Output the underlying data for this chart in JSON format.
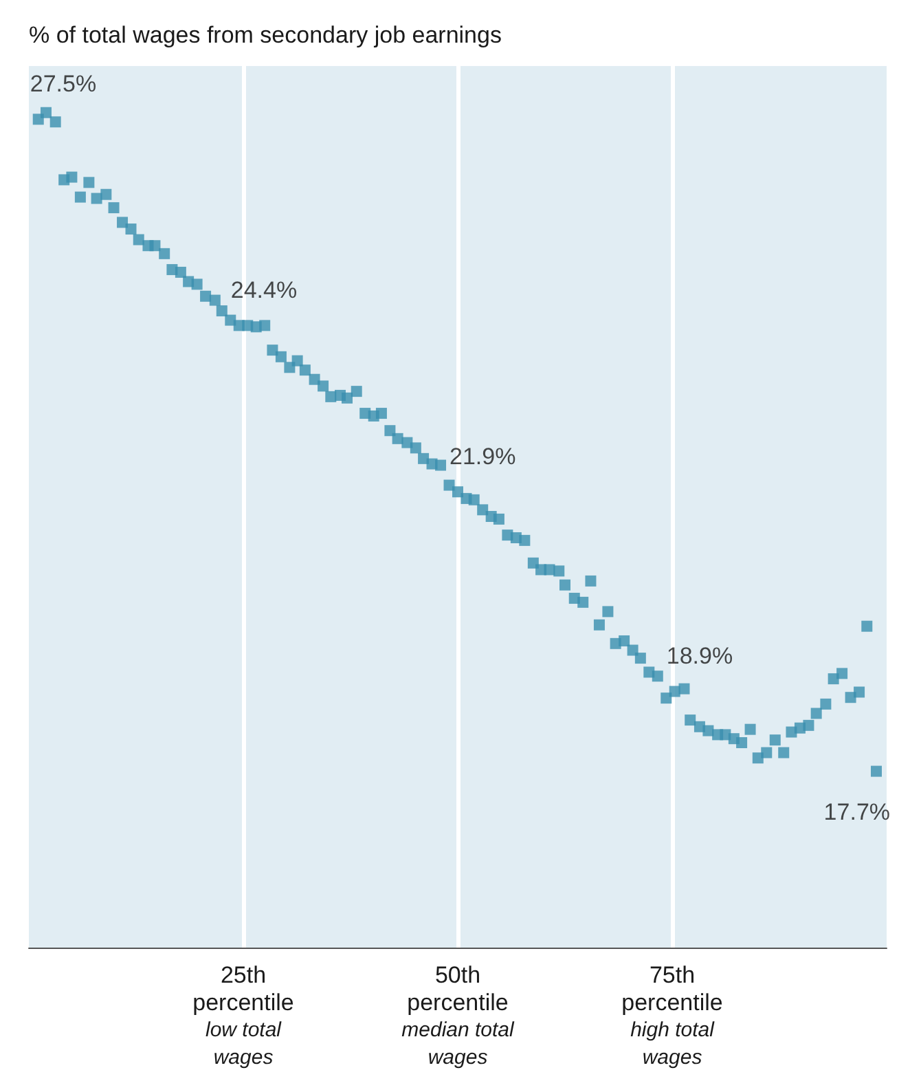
{
  "chart_data": {
    "type": "scatter",
    "title": "% of total wages from secondary job earnings",
    "x": [
      1.1,
      2.0,
      3.1,
      4.1,
      5.0,
      6.0,
      7.0,
      7.9,
      9.0,
      9.9,
      10.9,
      11.9,
      12.8,
      13.9,
      14.7,
      15.8,
      16.7,
      17.7,
      18.6,
      19.6,
      20.6,
      21.7,
      22.5,
      23.5,
      24.5,
      25.5,
      26.5,
      27.5,
      28.4,
      29.4,
      30.4,
      31.3,
      32.2,
      33.3,
      34.3,
      35.2,
      36.3,
      37.1,
      38.2,
      39.2,
      40.2,
      41.1,
      42.1,
      43.0,
      44.1,
      45.1,
      46.0,
      47.0,
      48.0,
      49.0,
      50.0,
      51.0,
      51.9,
      52.9,
      53.9,
      54.8,
      55.8,
      56.8,
      57.8,
      58.8,
      59.7,
      60.7,
      61.8,
      62.5,
      63.6,
      64.6,
      65.5,
      66.5,
      67.5,
      68.4,
      69.4,
      70.4,
      71.3,
      72.3,
      73.3,
      74.3,
      75.3,
      76.4,
      77.1,
      78.2,
      79.2,
      80.3,
      81.2,
      82.2,
      83.1,
      84.1,
      85.0,
      86.0,
      87.0,
      88.0,
      88.9,
      89.9,
      90.9,
      91.8,
      92.9,
      93.8,
      94.8,
      95.8,
      96.8,
      97.7,
      98.8
    ],
    "values": [
      27.5,
      27.6,
      27.46,
      26.59,
      26.63,
      26.33,
      26.55,
      26.31,
      26.37,
      26.17,
      25.95,
      25.85,
      25.69,
      25.6,
      25.6,
      25.48,
      25.24,
      25.2,
      25.06,
      25.02,
      24.84,
      24.78,
      24.62,
      24.48,
      24.4,
      24.4,
      24.38,
      24.4,
      24.03,
      23.93,
      23.77,
      23.87,
      23.73,
      23.59,
      23.49,
      23.33,
      23.35,
      23.31,
      23.41,
      23.08,
      23.04,
      23.08,
      22.82,
      22.7,
      22.64,
      22.56,
      22.4,
      22.32,
      22.3,
      22.0,
      21.9,
      21.8,
      21.78,
      21.63,
      21.53,
      21.49,
      21.25,
      21.21,
      21.17,
      20.83,
      20.73,
      20.73,
      20.71,
      20.5,
      20.3,
      20.24,
      20.56,
      19.9,
      20.1,
      19.62,
      19.66,
      19.52,
      19.4,
      19.19,
      19.13,
      18.8,
      18.9,
      18.94,
      18.47,
      18.37,
      18.31,
      18.25,
      18.25,
      18.19,
      18.13,
      18.33,
      17.9,
      17.98,
      18.17,
      17.98,
      18.29,
      18.35,
      18.39,
      18.57,
      18.71,
      19.09,
      19.17,
      18.81,
      18.89,
      19.88,
      17.7
    ],
    "value_labels": [
      "27.5%",
      null,
      null,
      null,
      null,
      null,
      null,
      null,
      null,
      null,
      null,
      null,
      null,
      null,
      null,
      null,
      null,
      null,
      null,
      null,
      null,
      null,
      null,
      null,
      "24.4%",
      null,
      null,
      null,
      null,
      null,
      null,
      null,
      null,
      null,
      null,
      null,
      null,
      null,
      null,
      null,
      null,
      null,
      null,
      null,
      null,
      null,
      null,
      null,
      null,
      null,
      "21.9%",
      null,
      null,
      null,
      null,
      null,
      null,
      null,
      null,
      null,
      null,
      null,
      null,
      null,
      null,
      null,
      null,
      null,
      null,
      null,
      null,
      null,
      null,
      null,
      null,
      null,
      "18.9%",
      null,
      null,
      null,
      null,
      null,
      null,
      null,
      null,
      null,
      null,
      null,
      null,
      null,
      null,
      null,
      null,
      null,
      null,
      null,
      null,
      null,
      null,
      null,
      "17.7%"
    ],
    "color": "#3a8fae",
    "marker": "square",
    "xlim": [
      0,
      100
    ],
    "ylim": [
      15.05,
      28.3
    ],
    "xticks": [
      {
        "value": 25,
        "label": "25th\npercentile\nlow total\nwages"
      },
      {
        "value": 50,
        "label": "50th\npercentile\nmedian total\nwages"
      },
      {
        "value": 75,
        "label": "75th\npercentile\nhigh total\nwages"
      }
    ],
    "tick_labels": "x",
    "grid": "x"
  }
}
